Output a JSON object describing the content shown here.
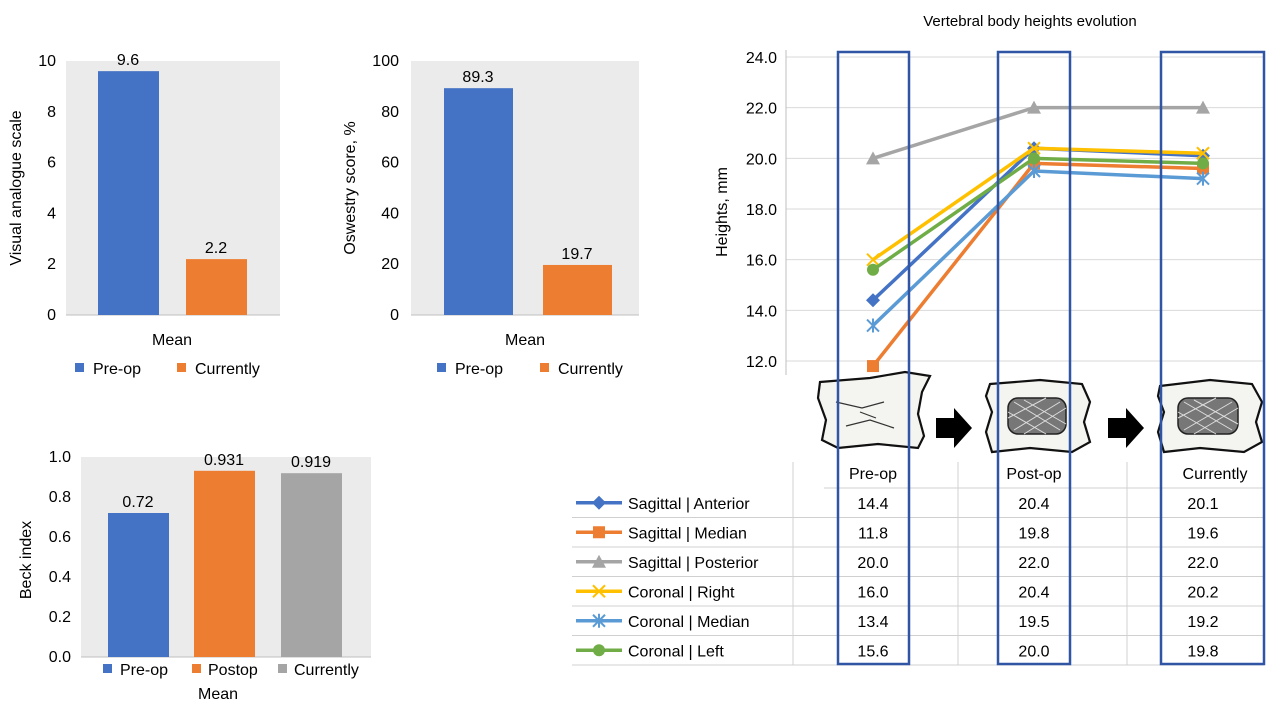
{
  "colors": {
    "preop": "#4472c4",
    "currently_orange": "#ed7d31",
    "postop": "#ed7d31",
    "currently_gray": "#a5a5a5",
    "plot_bg": "#ebebeb",
    "highlight_box": "#2f55a4",
    "series": {
      "sagittal_anterior": "#4472c4",
      "sagittal_median": "#ed7d31",
      "sagittal_posterior": "#a5a5a5",
      "coronal_right": "#ffc000",
      "coronal_median": "#5b9bd5",
      "coronal_left": "#70ad47"
    }
  },
  "chart_data": [
    {
      "type": "bar",
      "ylabel": "Visual analogue scale",
      "xlabel": "Mean",
      "ylim": [
        0,
        10
      ],
      "yticks": [
        "0",
        "2",
        "4",
        "6",
        "8",
        "10"
      ],
      "series": [
        {
          "name": "Pre-op",
          "values": [
            9.6
          ],
          "labels": [
            "9.6"
          ]
        },
        {
          "name": "Currently",
          "values": [
            2.2
          ],
          "labels": [
            "2.2"
          ]
        }
      ],
      "legend": "bottom",
      "grid": false
    },
    {
      "type": "bar",
      "ylabel": "Oswestry score, %",
      "xlabel": "Mean",
      "ylim": [
        0,
        100
      ],
      "yticks": [
        "0",
        "20",
        "40",
        "60",
        "80",
        "100"
      ],
      "series": [
        {
          "name": "Pre-op",
          "values": [
            89.3
          ],
          "labels": [
            "89.3"
          ]
        },
        {
          "name": "Currently",
          "values": [
            19.7
          ],
          "labels": [
            "19.7"
          ]
        }
      ],
      "legend": "bottom",
      "grid": false
    },
    {
      "type": "bar",
      "ylabel": "Beck index",
      "xlabel": "Mean",
      "ylim": [
        0,
        1
      ],
      "yticks": [
        "0.0",
        "0.2",
        "0.4",
        "0.6",
        "0.8",
        "1.0"
      ],
      "series": [
        {
          "name": "Pre-op",
          "values": [
            0.72
          ],
          "labels": [
            "0.72"
          ]
        },
        {
          "name": "Postop",
          "values": [
            0.931
          ],
          "labels": [
            "0.931"
          ]
        },
        {
          "name": "Currently",
          "values": [
            0.919
          ],
          "labels": [
            "0.919"
          ]
        }
      ],
      "legend": "bottom",
      "grid": false
    },
    {
      "type": "line",
      "title": "Vertebral body heights evolution",
      "ylabel": "Heights, mm",
      "ylim": [
        11.3,
        24.0
      ],
      "yticks": [
        "12.0",
        "14.0",
        "16.0",
        "18.0",
        "20.0",
        "22.0",
        "24.0"
      ],
      "categories": [
        "Pre-op",
        "Post-op",
        "Currently"
      ],
      "grid": true,
      "series": [
        {
          "name": "Sagittal | Anterior",
          "values": [
            14.4,
            20.4,
            20.1
          ],
          "labels": [
            "14.4",
            "20.4",
            "20.1"
          ],
          "marker": "diamond"
        },
        {
          "name": "Sagittal | Median",
          "values": [
            11.8,
            19.8,
            19.6
          ],
          "labels": [
            "11.8",
            "19.8",
            "19.6"
          ],
          "marker": "square"
        },
        {
          "name": "Sagittal | Posterior",
          "values": [
            20.0,
            22.0,
            22.0
          ],
          "labels": [
            "20.0",
            "22.0",
            "22.0"
          ],
          "marker": "triangle"
        },
        {
          "name": "Coronal | Right",
          "values": [
            16.0,
            20.4,
            20.2
          ],
          "labels": [
            "16.0",
            "20.4",
            "20.2"
          ],
          "marker": "x"
        },
        {
          "name": "Coronal | Median",
          "values": [
            13.4,
            19.5,
            19.2
          ],
          "labels": [
            "13.4",
            "19.5",
            "19.2"
          ],
          "marker": "star"
        },
        {
          "name": "Coronal | Left",
          "values": [
            15.6,
            20.0,
            19.8
          ],
          "labels": [
            "15.6",
            "20.0",
            "19.8"
          ],
          "marker": "circle"
        }
      ]
    }
  ]
}
